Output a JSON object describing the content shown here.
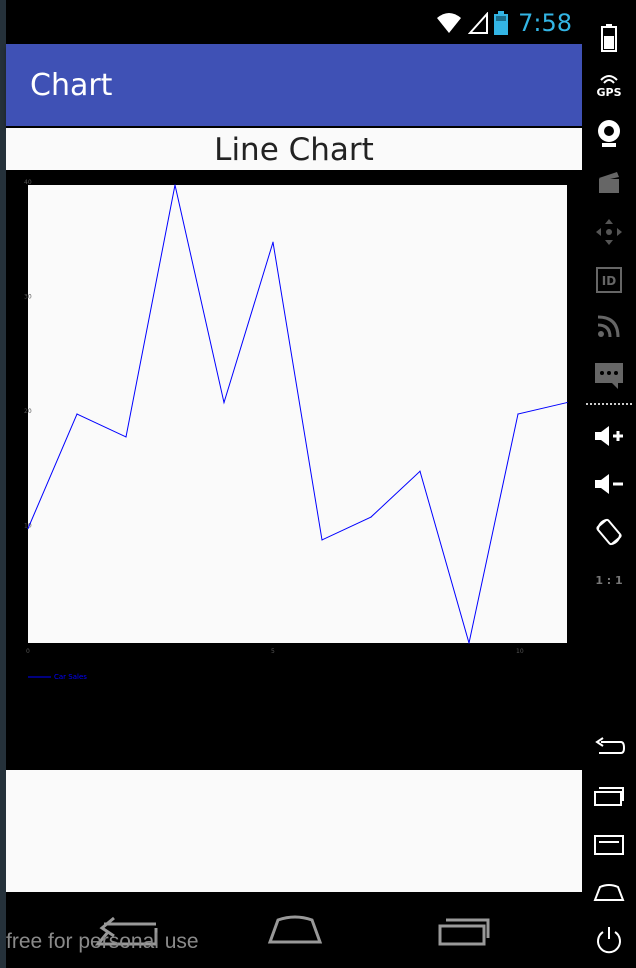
{
  "status_bar": {
    "time": "7:58"
  },
  "app_bar": {
    "title": "Chart"
  },
  "chart_header": {
    "title": "Line Chart"
  },
  "chart_data": {
    "type": "line",
    "x": [
      0,
      1,
      2,
      3,
      4,
      5,
      6,
      7,
      8,
      9,
      10,
      11
    ],
    "series": [
      {
        "name": "Car Sales",
        "values": [
          10,
          20,
          18,
          40,
          21,
          35,
          9,
          11,
          15,
          0,
          20,
          21
        ],
        "color": "#0000ff"
      }
    ],
    "xticks": [
      0,
      5,
      10
    ],
    "yticks": [
      10,
      20,
      30,
      40
    ],
    "xlim": [
      0,
      11
    ],
    "ylim": [
      0,
      40
    ],
    "legend_position": "bottom-left",
    "plot_background": "#fafafa"
  },
  "emulator_panel": {
    "gps_label": "GPS",
    "scale_label": "1 : 1"
  },
  "watermark": "free for personal use",
  "colors": {
    "app_bar": "#3f51b5",
    "clock": "#33b5e5",
    "series_line": "#0000ff"
  }
}
